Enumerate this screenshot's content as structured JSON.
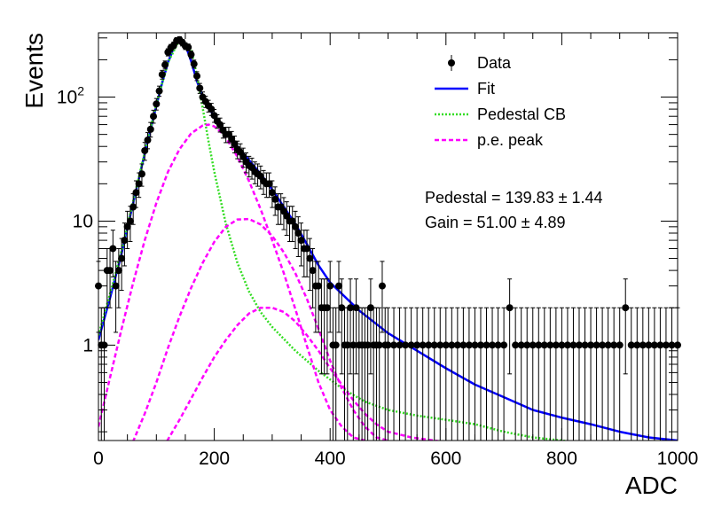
{
  "chart_data": {
    "type": "scatter",
    "xlabel": "ADC",
    "ylabel": "Events",
    "xlim": [
      0,
      1000
    ],
    "ylim": [
      0.17,
      330
    ],
    "yscale": "log",
    "grid": false,
    "legend_position": "top-right",
    "x_ticks": [
      {
        "v": 0,
        "label": "0"
      },
      {
        "v": 200,
        "label": "200"
      },
      {
        "v": 400,
        "label": "400"
      },
      {
        "v": 600,
        "label": "600"
      },
      {
        "v": 800,
        "label": "800"
      },
      {
        "v": 1000,
        "label": "1000"
      }
    ],
    "y_ticks": [
      {
        "v": 1,
        "label": "1"
      },
      {
        "v": 10,
        "label": "10"
      },
      {
        "v": 100,
        "label": "10",
        "sup": "2"
      }
    ],
    "legend": [
      {
        "label": "Data",
        "style": "marker",
        "color": "#000000"
      },
      {
        "label": "Fit",
        "style": "solid",
        "color": "#0000ff"
      },
      {
        "label": "Pedestal CB",
        "style": "dotted",
        "color": "#33dd22"
      },
      {
        "label": "p.e. peak",
        "style": "dashed",
        "color": "#ff00ff"
      }
    ],
    "annotations": [
      {
        "text": "Pedestal = 139.83",
        "pm": "±",
        "err": "1.44"
      },
      {
        "text": "Gain = 51.00",
        "pm": "±",
        "err": "4.89"
      }
    ],
    "series": [
      {
        "name": "Data",
        "kind": "points",
        "x": [
          0,
          5,
          10,
          15,
          20,
          25,
          30,
          35,
          40,
          45,
          50,
          55,
          60,
          65,
          70,
          75,
          80,
          85,
          90,
          95,
          100,
          105,
          110,
          115,
          120,
          125,
          130,
          135,
          140,
          145,
          150,
          155,
          160,
          165,
          170,
          175,
          180,
          185,
          190,
          195,
          200,
          205,
          210,
          215,
          220,
          225,
          230,
          235,
          240,
          245,
          250,
          255,
          260,
          265,
          270,
          275,
          280,
          285,
          290,
          295,
          300,
          305,
          310,
          315,
          320,
          325,
          330,
          335,
          340,
          345,
          350,
          355,
          360,
          365,
          370,
          375,
          380,
          385,
          390,
          395,
          400,
          405,
          410,
          415,
          420,
          425,
          430,
          435,
          440,
          445,
          450,
          455,
          460,
          465,
          470,
          475,
          480,
          485,
          490,
          495,
          500,
          510,
          520,
          530,
          540,
          550,
          560,
          570,
          580,
          590,
          600,
          610,
          620,
          630,
          640,
          650,
          660,
          670,
          680,
          690,
          700,
          710,
          720,
          730,
          740,
          750,
          760,
          770,
          780,
          790,
          800,
          810,
          820,
          830,
          840,
          850,
          860,
          870,
          880,
          890,
          900,
          910,
          920,
          930,
          940,
          950,
          960,
          970,
          980,
          990,
          1000
        ],
        "y": [
          3,
          1,
          1,
          4,
          4,
          6,
          3,
          4,
          5,
          7,
          9,
          10,
          13,
          17,
          20,
          24,
          37,
          45,
          55,
          70,
          88,
          112,
          152,
          182,
          230,
          250,
          262,
          285,
          290,
          275,
          258,
          252,
          220,
          185,
          148,
          118,
          100,
          92,
          85,
          80,
          71,
          64,
          60,
          54,
          50,
          50,
          46,
          42,
          38,
          36,
          33,
          30,
          28,
          27,
          25,
          24,
          23,
          21,
          20,
          20,
          17,
          15,
          13,
          13,
          12,
          11,
          10,
          10,
          9,
          8,
          7,
          6,
          6,
          5,
          4,
          3,
          3,
          2,
          2,
          2,
          3,
          1,
          1,
          3,
          2,
          1,
          1,
          2,
          1,
          2,
          1,
          1,
          1,
          1,
          2,
          1,
          1,
          1,
          3,
          1,
          1,
          1,
          1,
          1,
          1,
          1,
          1,
          1,
          1,
          1,
          1,
          1,
          1,
          1,
          1,
          1,
          1,
          1,
          1,
          1,
          1,
          2,
          1,
          1,
          1,
          1,
          1,
          1,
          1,
          1,
          1,
          1,
          1,
          1,
          1,
          1,
          1,
          1,
          1,
          1,
          1,
          2,
          1,
          1,
          1,
          1,
          1,
          1,
          1,
          1,
          1
        ]
      },
      {
        "name": "Fit",
        "kind": "line",
        "x": [
          0,
          20,
          40,
          60,
          80,
          100,
          110,
          120,
          130,
          140,
          150,
          160,
          170,
          180,
          190,
          200,
          220,
          240,
          260,
          280,
          300,
          320,
          340,
          360,
          380,
          400,
          450,
          500,
          550,
          600,
          650,
          700,
          750,
          800,
          850,
          900,
          950,
          1000
        ],
        "y": [
          1.1,
          2.4,
          5.5,
          14,
          35,
          85,
          130,
          190,
          250,
          295,
          265,
          195,
          135,
          100,
          82,
          70,
          52,
          40,
          31,
          24,
          18,
          13,
          9.5,
          6.5,
          4.4,
          3.2,
          1.9,
          1.25,
          0.9,
          0.65,
          0.48,
          0.38,
          0.3,
          0.26,
          0.23,
          0.2,
          0.18,
          0.17
        ]
      },
      {
        "name": "Pedestal CB",
        "kind": "line",
        "x": [
          0,
          20,
          40,
          60,
          80,
          100,
          120,
          140,
          160,
          170,
          180,
          190,
          200,
          220,
          240,
          260,
          280,
          300,
          340,
          380,
          420,
          460,
          500,
          550,
          600,
          650,
          700,
          750,
          800,
          850,
          900
        ],
        "y": [
          1.2,
          2.6,
          5.8,
          14.5,
          36,
          88,
          190,
          290,
          240,
          150,
          82,
          44,
          25,
          9.5,
          4.6,
          2.7,
          1.85,
          1.4,
          0.9,
          0.62,
          0.45,
          0.35,
          0.3,
          0.27,
          0.25,
          0.23,
          0.2,
          0.18,
          0.17,
          0.16,
          0.15
        ]
      },
      {
        "name": "p.e. peak",
        "kind": "line",
        "x": [
          0,
          20,
          40,
          60,
          80,
          100,
          120,
          140,
          160,
          180,
          190,
          200,
          210,
          220,
          240,
          260,
          280,
          300,
          320,
          340,
          360,
          380,
          400,
          420,
          440,
          460
        ],
        "y": [
          0.22,
          0.55,
          1.35,
          3.2,
          7.0,
          14,
          25,
          38,
          51,
          59,
          60,
          58,
          53,
          47,
          33,
          21,
          12.5,
          7,
          3.8,
          1.95,
          0.98,
          0.5,
          0.3,
          0.22,
          0.18,
          0.17
        ]
      },
      {
        "name": "p.e. peak",
        "kind": "line",
        "x": [
          50,
          80,
          100,
          120,
          140,
          160,
          180,
          200,
          220,
          240,
          260,
          280,
          300,
          320,
          340,
          360,
          380,
          400,
          420,
          440,
          460,
          480,
          500
        ],
        "y": [
          0.13,
          0.28,
          0.5,
          0.95,
          1.7,
          2.9,
          4.6,
          6.8,
          9.0,
          10.3,
          10.4,
          9.4,
          7.6,
          5.6,
          3.8,
          2.35,
          1.35,
          0.75,
          0.45,
          0.3,
          0.22,
          0.18,
          0.17
        ]
      },
      {
        "name": "p.e. peak",
        "kind": "line",
        "x": [
          100,
          140,
          160,
          180,
          200,
          220,
          240,
          260,
          280,
          300,
          320,
          340,
          360,
          380,
          400,
          420,
          440,
          460,
          480,
          500,
          520,
          540,
          560,
          580,
          600
        ],
        "y": [
          0.12,
          0.25,
          0.37,
          0.55,
          0.8,
          1.1,
          1.45,
          1.8,
          2.0,
          2.0,
          1.85,
          1.55,
          1.2,
          0.9,
          0.65,
          0.48,
          0.36,
          0.28,
          0.23,
          0.2,
          0.19,
          0.18,
          0.175,
          0.17,
          0.165
        ]
      }
    ]
  }
}
